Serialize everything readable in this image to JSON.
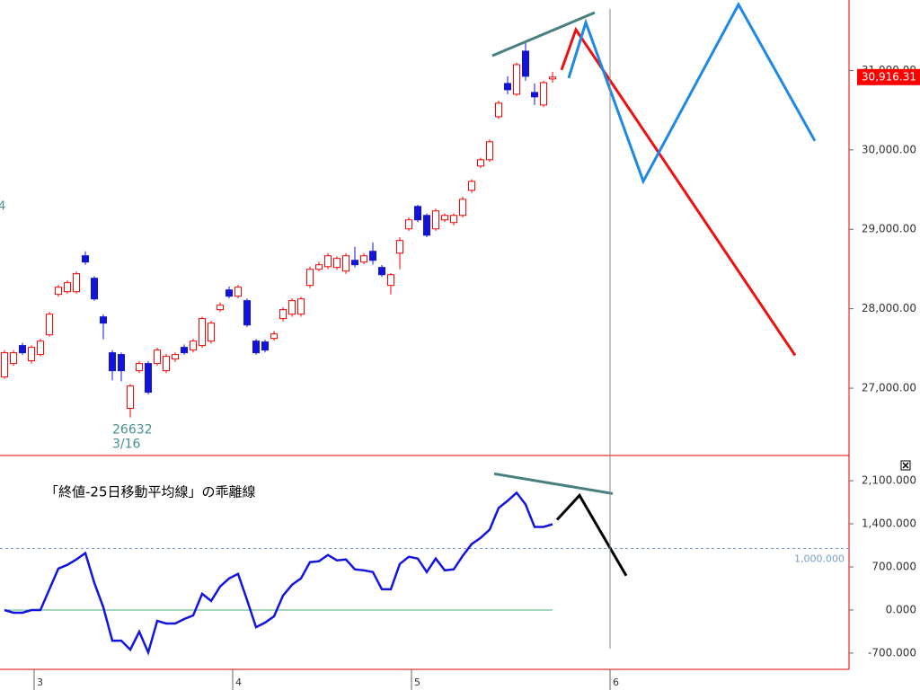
{
  "chart_data": [
    {
      "type": "candlestick",
      "up_color": "#ff0000",
      "down_color": "#1414d8",
      "open": [
        27141,
        27311,
        27537,
        27345,
        27424,
        27672,
        28181,
        28215,
        28215,
        28667,
        28384,
        27898,
        27446,
        27424,
        26746,
        27220,
        27311,
        27311,
        27220,
        27367,
        27514,
        27480,
        27537,
        27593,
        27989,
        28237,
        28158,
        28102,
        27593,
        27582,
        27627,
        27876,
        27932,
        27932,
        28294,
        28497,
        28530,
        28520,
        28474,
        28610,
        28588,
        28723,
        28520,
        28294,
        28700,
        29006,
        29288,
        29175,
        29006,
        29119,
        29085,
        29175,
        29491,
        29797,
        29876,
        30418,
        30836,
        30701,
        31243,
        30723,
        30565,
        30893
      ],
      "high": [
        27480,
        27480,
        27570,
        27540,
        27620,
        27960,
        28300,
        28360,
        28470,
        28723,
        28410,
        27930,
        27480,
        27450,
        27051,
        27340,
        27340,
        27510,
        27430,
        27450,
        27550,
        27620,
        27900,
        27850,
        28080,
        28280,
        28300,
        28130,
        27620,
        27610,
        27720,
        28020,
        28130,
        28150,
        28530,
        28590,
        28700,
        28660,
        28700,
        28780,
        28700,
        28836,
        28550,
        28450,
        28900,
        29150,
        29310,
        29200,
        29260,
        29200,
        29200,
        29410,
        29630,
        29900,
        30130,
        30620,
        30927,
        31100,
        31356,
        30836,
        30870,
        30983
      ],
      "low": [
        27118,
        27280,
        27420,
        27310,
        27400,
        27650,
        28150,
        28190,
        28190,
        28554,
        28100,
        27616,
        27100,
        27085,
        26632,
        27190,
        26920,
        27280,
        27190,
        27330,
        27420,
        27450,
        27510,
        27560,
        27960,
        28130,
        28130,
        27770,
        27420,
        27450,
        27600,
        27840,
        27900,
        27900,
        28260,
        28470,
        28500,
        28490,
        28440,
        28520,
        28560,
        28554,
        28400,
        28180,
        28497,
        28980,
        29090,
        28900,
        28980,
        29090,
        29050,
        29150,
        29460,
        29770,
        29850,
        30390,
        30701,
        30680,
        30870,
        30565,
        30540,
        30847
      ],
      "close": [
        27446,
        27446,
        27446,
        27514,
        27593,
        27932,
        28271,
        28328,
        28441,
        28588,
        28124,
        27819,
        27220,
        27220,
        27028,
        27311,
        26949,
        27480,
        27401,
        27424,
        27446,
        27593,
        27876,
        27819,
        28045,
        28158,
        28271,
        27796,
        27446,
        27480,
        27683,
        27989,
        28102,
        28124,
        28497,
        28554,
        28667,
        28633,
        28667,
        28554,
        28667,
        28610,
        28429,
        28429,
        28859,
        29119,
        29119,
        28926,
        29232,
        29175,
        29175,
        29378,
        29604,
        29876,
        30102,
        30588,
        30757,
        31073,
        30927,
        30667,
        30847,
        30916
      ],
      "xlim": [
        -0.5,
        94
      ],
      "ylim": [
        26175,
        31887
      ],
      "yticks": [
        {
          "value": 27000,
          "label": "27,000.00"
        },
        {
          "value": 28000,
          "label": "28,000.00"
        },
        {
          "value": 29000,
          "label": "29,000.00"
        },
        {
          "value": 30000,
          "label": "30,000.00"
        },
        {
          "value": 31000,
          "label": "31,000.00"
        }
      ],
      "last_price": {
        "value": 30916.31,
        "label": "30,916.31"
      },
      "low_label": {
        "value": 26632,
        "label": "26632",
        "date": "3/16"
      },
      "edge_label": "4",
      "lines": [
        {
          "color": "#ee1111",
          "x": [
            62,
            63.6,
            88
          ],
          "values": [
            31006,
            31514,
            27412
          ]
        },
        {
          "color": "#1e88e5",
          "x": [
            62.8,
            64.7,
            71.1,
            81.7,
            90.2
          ],
          "values": [
            30904,
            31604,
            29604,
            31831,
            30113
          ]
        },
        {
          "color": "#4a7f7f",
          "x": [
            54.3,
            65.7
          ],
          "values": [
            31186,
            31729
          ]
        }
      ]
    },
    {
      "type": "line",
      "title": "「終値-25日移動平均線」の乖離線",
      "color": "#1414e0",
      "values": [
        0,
        -44,
        -44,
        0,
        0,
        337,
        674,
        733,
        821,
        924,
        440,
        44,
        -498,
        -498,
        -645,
        -352,
        -689,
        -176,
        -220,
        -220,
        -147,
        -88,
        264,
        147,
        381,
        513,
        586,
        161,
        -279,
        -205,
        -103,
        235,
        410,
        513,
        777,
        792,
        894,
        806,
        821,
        660,
        645,
        616,
        337,
        337,
        748,
        865,
        836,
        616,
        836,
        645,
        660,
        880,
        1070,
        1173,
        1305,
        1657,
        1774,
        1906,
        1715,
        1349,
        1349,
        1393
      ],
      "xlim": [
        -0.5,
        94
      ],
      "ylim": [
        -964,
        2466
      ],
      "yticks": [
        {
          "value": -700,
          "label": "-700.000"
        },
        {
          "value": 0,
          "label": "0.000"
        },
        {
          "value": 700,
          "label": "700.000"
        },
        {
          "value": 1400,
          "label": "1,400.000"
        },
        {
          "value": 2100,
          "label": "2,100.000"
        }
      ],
      "xticks": [
        {
          "value": 3.3,
          "label": "3"
        },
        {
          "value": 25.4,
          "label": "4"
        },
        {
          "value": 45.3,
          "label": "5"
        },
        {
          "value": 67.4,
          "label": "6"
        }
      ],
      "reference_line": {
        "value": 1000,
        "label": "1,000.000",
        "color": "#7a9cc8"
      },
      "zero_line": {
        "value": 0,
        "color": "#4caf7a"
      },
      "lines": [
        {
          "color": "#000000",
          "x": [
            61.5,
            64,
            69.2
          ],
          "values": [
            1466,
            1862,
            557
          ]
        },
        {
          "color": "#4a7f7f",
          "x": [
            54.5,
            67.7
          ],
          "values": [
            2214,
            1891
          ]
        }
      ]
    }
  ]
}
